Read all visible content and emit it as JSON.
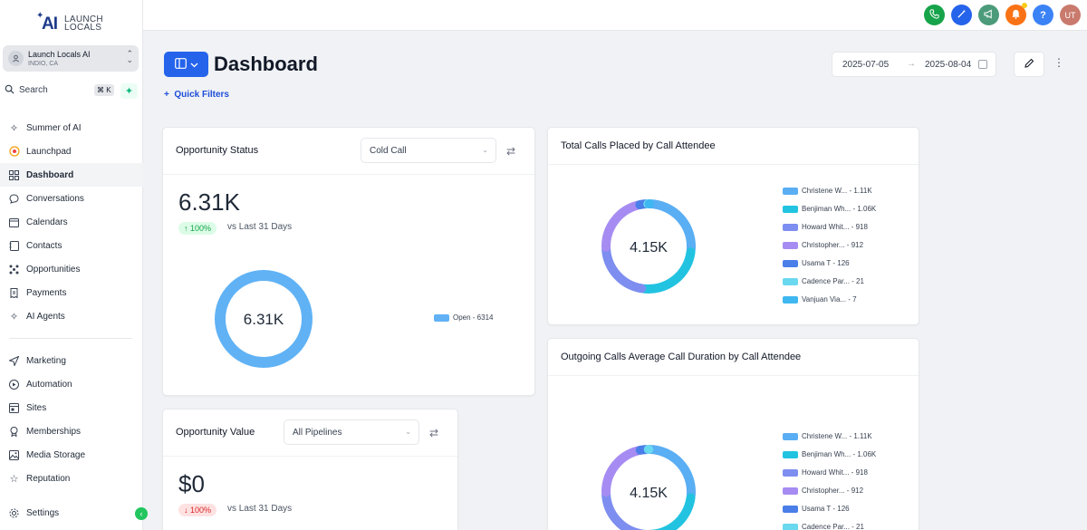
{
  "brand": {
    "logo_mark": "AI",
    "line1": "LAUNCH",
    "line2": "LOCALS"
  },
  "account": {
    "name": "Launch Locals AI",
    "location": "INDIO, CA"
  },
  "search": {
    "label": "Search",
    "shortcut": "⌘ K"
  },
  "nav": [
    {
      "label": "Summer of AI",
      "icon": "sparkles-icon"
    },
    {
      "label": "Launchpad",
      "icon": "rocket-icon"
    },
    {
      "label": "Dashboard",
      "icon": "grid-icon",
      "active": true
    },
    {
      "label": "Conversations",
      "icon": "chat-icon"
    },
    {
      "label": "Calendars",
      "icon": "calendar-icon"
    },
    {
      "label": "Contacts",
      "icon": "contacts-icon"
    },
    {
      "label": "Opportunities",
      "icon": "funnel-icon"
    },
    {
      "label": "Payments",
      "icon": "receipt-icon"
    },
    {
      "label": "AI Agents",
      "icon": "sparkles-icon"
    }
  ],
  "nav2": [
    {
      "label": "Marketing",
      "icon": "send-icon"
    },
    {
      "label": "Automation",
      "icon": "automation-icon"
    },
    {
      "label": "Sites",
      "icon": "sites-icon"
    },
    {
      "label": "Memberships",
      "icon": "award-icon"
    },
    {
      "label": "Media Storage",
      "icon": "image-icon"
    },
    {
      "label": "Reputation",
      "icon": "star-icon"
    }
  ],
  "settings": {
    "label": "Settings"
  },
  "topbar": {
    "user_initials": "UT",
    "help": "?"
  },
  "page": {
    "title": "Dashboard",
    "quick_filters": "Quick Filters"
  },
  "date_range": {
    "start": "2025-07-05",
    "end": "2025-08-04"
  },
  "opportunity_status": {
    "title": "Opportunity Status",
    "filter": "Cold Call",
    "value": "6.31K",
    "change": "100%",
    "vs": "vs Last 31 Days",
    "center": "6.31K",
    "legend": "Open - 6314"
  },
  "opportunity_value": {
    "title": "Opportunity Value",
    "filter": "All Pipelines",
    "value": "$0",
    "change": "100%",
    "vs": "vs Last 31 Days"
  },
  "calls_placed": {
    "title": "Total Calls Placed by Call Attendee",
    "center": "4.15K",
    "legend": [
      "Christene W... - 1.11K",
      "Benjiman Wh... - 1.06K",
      "Howard Whit... - 918",
      "Christopher... - 912",
      "Usama T - 126",
      "Cadence Par... - 21",
      "Vanjuan Via... - 7"
    ]
  },
  "call_duration": {
    "title": "Outgoing Calls Average Call Duration by Call Attendee",
    "center": "4.15K",
    "legend": [
      "Christene W... - 1.11K",
      "Benjiman Wh... - 1.06K",
      "Howard Whit... - 918",
      "Christopher... - 912",
      "Usama T - 126",
      "Cadence Par... - 21"
    ]
  },
  "colors": {
    "primary": "#2563eb",
    "donut_single": "#60b2f5",
    "series": [
      "#5aaef3",
      "#22c3e0",
      "#7d8ef0",
      "#a68cf2",
      "#4a7ee8",
      "#6ad8ef",
      "#3fb7f0"
    ]
  },
  "chart_data": [
    {
      "type": "pie",
      "categories": [
        "Open"
      ],
      "values": [
        6314
      ]
    },
    {
      "type": "pie",
      "title": "Total Calls Placed by Call Attendee",
      "categories": [
        "Christene W...",
        "Benjiman Wh...",
        "Howard Whit...",
        "Christopher...",
        "Usama T",
        "Cadence Par...",
        "Vanjuan Via..."
      ],
      "values": [
        1110,
        1060,
        918,
        912,
        126,
        21,
        7
      ]
    },
    {
      "type": "pie",
      "title": "Outgoing Calls Average Call Duration by Call Attendee",
      "categories": [
        "Christene W...",
        "Benjiman Wh...",
        "Howard Whit...",
        "Christopher...",
        "Usama T",
        "Cadence Par..."
      ],
      "values": [
        1110,
        1060,
        918,
        912,
        126,
        21
      ]
    }
  ]
}
